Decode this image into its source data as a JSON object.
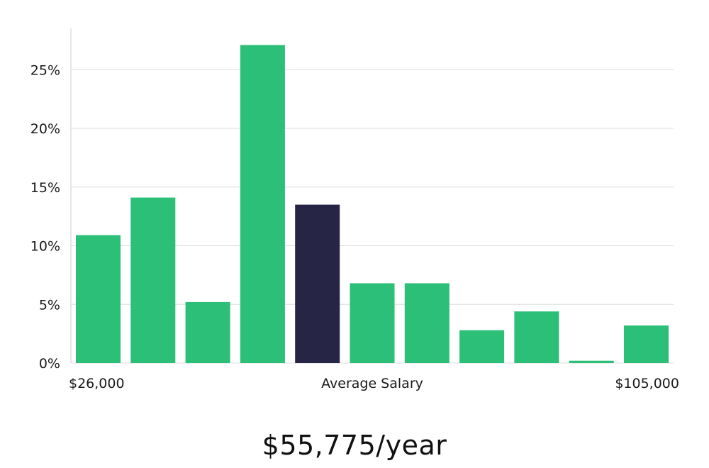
{
  "chart_data": {
    "type": "bar",
    "title": "",
    "xlabel": "Average Salary",
    "ylabel": "",
    "x_start_label": "$26,000",
    "x_end_label": "$105,000",
    "ylim": [
      0,
      28
    ],
    "yticks": [
      0,
      5,
      10,
      15,
      20,
      25
    ],
    "ytick_labels": [
      "0%",
      "5%",
      "10%",
      "15%",
      "20%",
      "25%"
    ],
    "values": [
      10.9,
      14.1,
      5.2,
      27.1,
      13.5,
      6.8,
      6.8,
      2.8,
      4.4,
      0.2,
      3.2
    ],
    "highlight_index": 4,
    "colors": {
      "bar": "#2bbf78",
      "highlight": "#272545",
      "grid": "#dddddd",
      "axis": "#cccccc"
    },
    "grid": true
  },
  "salary_text": "$55,775/year"
}
